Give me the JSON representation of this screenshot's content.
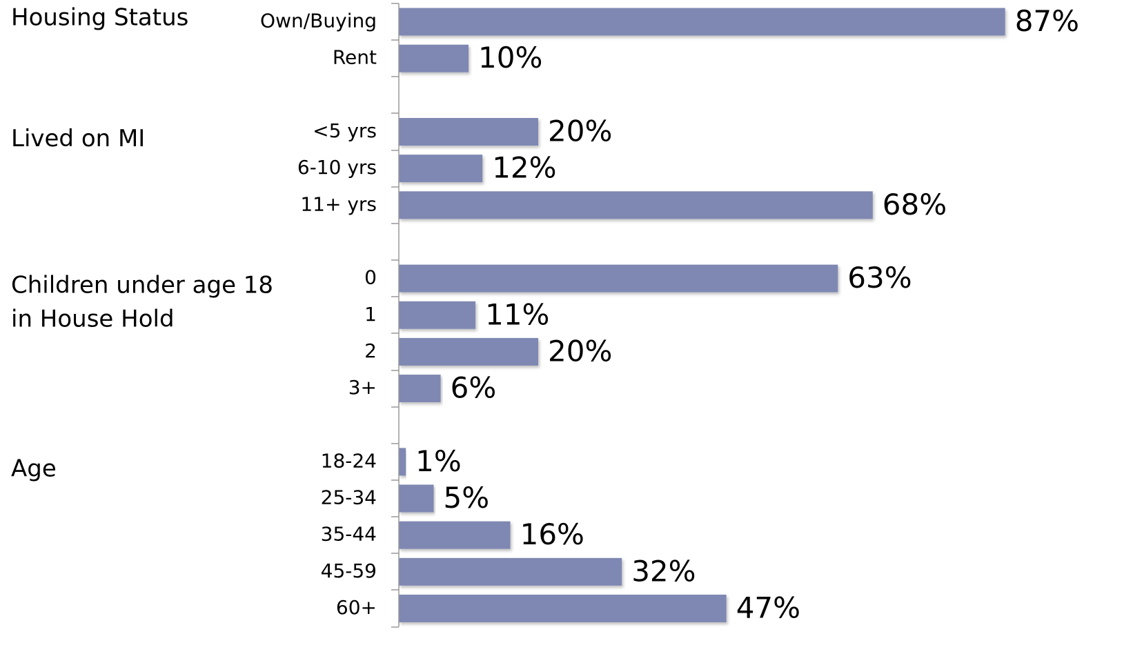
{
  "chart_data": {
    "type": "bar",
    "orientation": "horizontal",
    "color": "#7f88b2",
    "xlim": [
      0,
      100
    ],
    "groups": [
      {
        "label": [
          "Housing Status"
        ],
        "categories": [
          "Own/Buying",
          "Rent"
        ],
        "values": [
          87,
          10
        ],
        "value_labels": [
          "87%",
          "10%"
        ]
      },
      {
        "label": [
          "Lived on MI"
        ],
        "categories": [
          "<5 yrs",
          "6-10 yrs",
          "11+ yrs"
        ],
        "values": [
          20,
          12,
          68
        ],
        "value_labels": [
          "20%",
          "12%",
          "68%"
        ]
      },
      {
        "label": [
          "Children under age 18",
          "in House Hold"
        ],
        "categories": [
          "0",
          "1",
          "2",
          "3+"
        ],
        "values": [
          63,
          11,
          20,
          6
        ],
        "value_labels": [
          "63%",
          "11%",
          "20%",
          "6%"
        ]
      },
      {
        "label": [
          "Age"
        ],
        "categories": [
          "18-24",
          "25-34",
          "35-44",
          "45-59",
          "60+"
        ],
        "values": [
          1,
          5,
          16,
          32,
          47
        ],
        "value_labels": [
          "1%",
          "5%",
          "16%",
          "32%",
          "47%"
        ]
      }
    ]
  }
}
